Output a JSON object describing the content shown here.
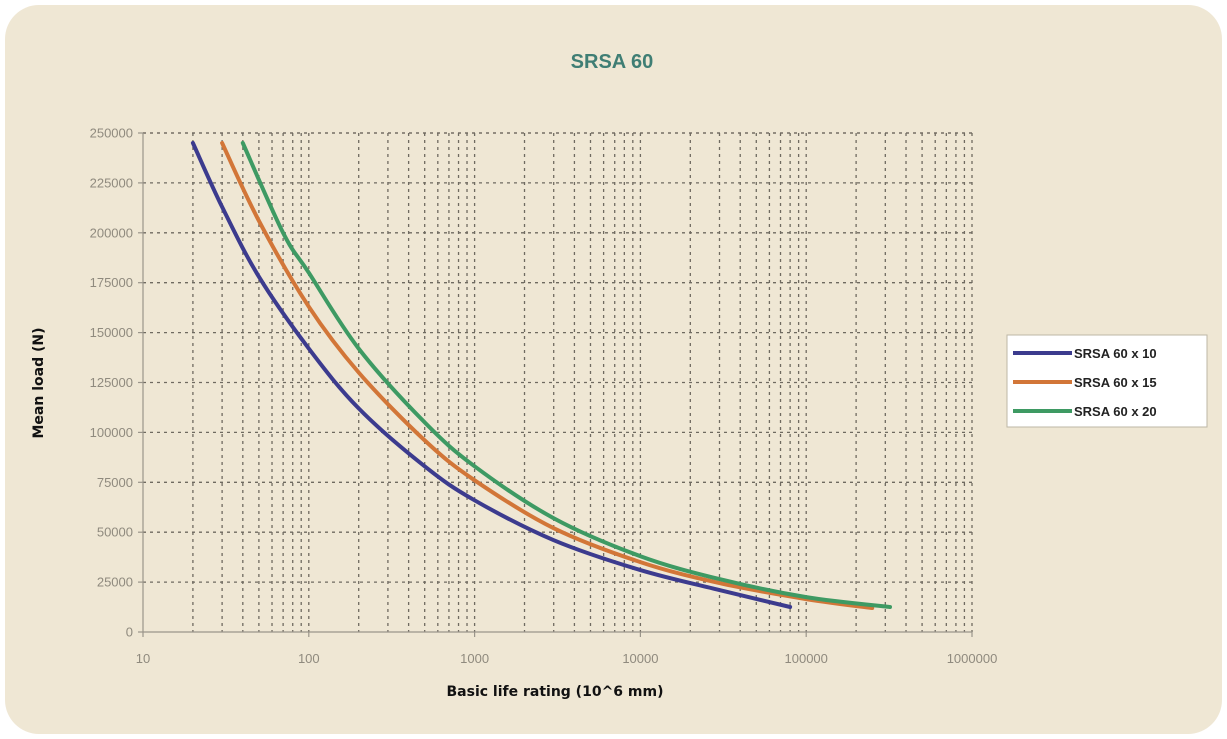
{
  "chart_data": {
    "type": "line",
    "title": "SRSA 60",
    "xlabel": "Basic life rating (10^6 mm)",
    "ylabel": "Mean load (N)",
    "x_scale": "log",
    "xlim": [
      10,
      1000000
    ],
    "ylim": [
      0,
      250000
    ],
    "x_ticks": [
      "10",
      "100",
      "1000",
      "10000",
      "100000",
      "1000000"
    ],
    "y_ticks": [
      "0",
      "25000",
      "50000",
      "75000",
      "100000",
      "125000",
      "150000",
      "175000",
      "200000",
      "225000",
      "250000"
    ],
    "grid": true,
    "legend_position": "right",
    "series": [
      {
        "name": "SRSA 60 x 10",
        "color": "#3c3b8e",
        "x": [
          20,
          30,
          50,
          100,
          200,
          500,
          1000,
          3000,
          10000,
          30000,
          80000
        ],
        "y": [
          245000,
          213000,
          178000,
          142000,
          112000,
          83000,
          66000,
          46000,
          31000,
          21000,
          12500
        ]
      },
      {
        "name": "SRSA 60 x 15",
        "color": "#d27638",
        "x": [
          30,
          50,
          100,
          200,
          500,
          1000,
          3000,
          10000,
          30000,
          100000,
          250000
        ],
        "y": [
          245000,
          206000,
          163000,
          130000,
          96000,
          76000,
          52000,
          35000,
          24500,
          16500,
          12000
        ]
      },
      {
        "name": "SRSA 60 x 20",
        "color": "#3e9a63",
        "x": [
          40,
          70,
          100,
          200,
          500,
          1000,
          3000,
          10000,
          30000,
          100000,
          320000
        ],
        "y": [
          245000,
          200000,
          180000,
          142000,
          105000,
          83000,
          57000,
          38000,
          26500,
          17500,
          12500
        ]
      }
    ]
  }
}
